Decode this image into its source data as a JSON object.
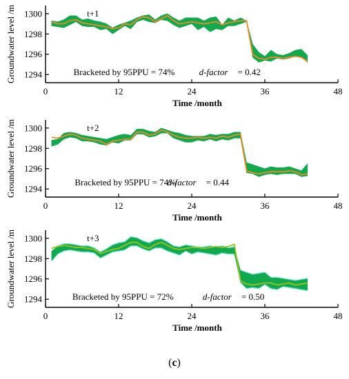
{
  "caption": {
    "open": "(",
    "letter": "c",
    "close": ")"
  },
  "colors": {
    "band": "#12a84e",
    "band_light": "#3fe0d0",
    "observed": "#f08a24",
    "observed_alt": "#9bc31e",
    "axis": "#000000"
  },
  "chart_data": [
    {
      "type": "area",
      "panel_label": "t+1",
      "xlabel": "Time /month",
      "ylabel": "Groundwater level /m",
      "xlim": [
        0,
        48
      ],
      "ylim": [
        1293.2,
        1300.8
      ],
      "xticks": [
        0,
        12,
        24,
        36,
        48
      ],
      "yticks": [
        1294,
        1296,
        1298,
        1300
      ],
      "grid": false,
      "annotation_text": "Bracketed by 95PPU = 74%",
      "dfactor_label": "d-factor",
      "dfactor_value": "= 0.42",
      "series": [
        {
          "role": "band",
          "x": [
            1,
            2,
            3,
            4,
            5,
            6,
            7,
            8,
            9,
            10,
            11,
            12,
            13,
            14,
            15,
            16,
            17,
            18,
            19,
            20,
            21,
            22,
            23,
            24,
            25,
            26,
            27,
            28,
            29,
            30,
            31,
            32,
            33,
            34,
            35,
            36,
            37,
            38,
            39,
            40,
            41,
            42,
            43
          ],
          "lower": [
            1298.8,
            1298.7,
            1298.6,
            1298.9,
            1299.2,
            1298.8,
            1298.7,
            1298.7,
            1298.4,
            1298.5,
            1298.0,
            1298.4,
            1298.8,
            1298.5,
            1299.2,
            1299.4,
            1299.2,
            1299.1,
            1299.4,
            1299.3,
            1298.9,
            1298.6,
            1298.8,
            1299.0,
            1298.4,
            1298.7,
            1298.2,
            1298.5,
            1298.4,
            1298.8,
            1298.8,
            1299.0,
            1299.2,
            1295.7,
            1295.2,
            1295.4,
            1295.3,
            1295.6,
            1295.5,
            1295.6,
            1295.8,
            1295.7,
            1295.2
          ],
          "upper": [
            1299.3,
            1299.2,
            1299.4,
            1299.8,
            1299.8,
            1299.4,
            1299.5,
            1299.3,
            1299.2,
            1299.0,
            1298.6,
            1298.9,
            1299.1,
            1299.3,
            1299.6,
            1299.8,
            1299.9,
            1299.4,
            1299.8,
            1300.0,
            1299.6,
            1299.3,
            1299.6,
            1299.6,
            1299.6,
            1299.3,
            1299.6,
            1299.7,
            1298.9,
            1299.6,
            1299.3,
            1299.6,
            1299.3,
            1297.0,
            1296.2,
            1295.8,
            1296.4,
            1296.0,
            1295.9,
            1296.1,
            1296.4,
            1296.5,
            1295.9
          ]
        },
        {
          "role": "observed",
          "x": [
            1,
            2,
            3,
            4,
            5,
            6,
            7,
            8,
            9,
            10,
            11,
            12,
            13,
            14,
            15,
            16,
            17,
            18,
            19,
            20,
            21,
            22,
            23,
            24,
            25,
            26,
            27,
            28,
            29,
            30,
            31,
            32,
            33,
            34,
            35,
            36,
            37,
            38,
            39,
            40,
            41,
            42,
            43
          ],
          "values": [
            1299.2,
            1299.0,
            1299.0,
            1299.3,
            1299.4,
            1299.1,
            1299.0,
            1298.9,
            1298.8,
            1298.7,
            1298.5,
            1298.6,
            1299.0,
            1298.9,
            1299.4,
            1299.7,
            1299.6,
            1299.2,
            1299.5,
            1299.8,
            1299.3,
            1299.0,
            1299.1,
            1299.2,
            1299.1,
            1299.0,
            1299.1,
            1299.2,
            1298.9,
            1299.1,
            1299.2,
            1299.3,
            1299.3,
            1296.0,
            1295.6,
            1295.5,
            1295.7,
            1295.7,
            1295.6,
            1295.7,
            1295.8,
            1295.7,
            1295.3
          ]
        }
      ]
    },
    {
      "type": "area",
      "panel_label": "t+2",
      "xlabel": "Time /month",
      "ylabel": "Groundwater level /m",
      "xlim": [
        0,
        48
      ],
      "ylim": [
        1293.2,
        1300.8
      ],
      "xticks": [
        0,
        12,
        24,
        36,
        48
      ],
      "yticks": [
        1294,
        1296,
        1298,
        1300
      ],
      "grid": false,
      "annotation_text": "Bracketed by 95PPU = 74%",
      "dfactor_label": "d-factor",
      "dfactor_value": "= 0.44",
      "series": [
        {
          "role": "band",
          "x": [
            1,
            2,
            3,
            4,
            5,
            6,
            7,
            8,
            9,
            10,
            11,
            12,
            13,
            14,
            15,
            16,
            17,
            18,
            19,
            20,
            21,
            22,
            23,
            24,
            25,
            26,
            27,
            28,
            29,
            30,
            31,
            32,
            33,
            34,
            35,
            36,
            37,
            38,
            39,
            40,
            41,
            42,
            43
          ],
          "lower": [
            1298.2,
            1298.4,
            1298.9,
            1299.1,
            1299.0,
            1298.7,
            1298.7,
            1298.6,
            1298.4,
            1298.3,
            1298.6,
            1298.5,
            1298.8,
            1298.8,
            1299.4,
            1299.4,
            1299.1,
            1299.2,
            1299.5,
            1299.5,
            1299.0,
            1298.8,
            1298.6,
            1298.6,
            1298.8,
            1298.7,
            1298.9,
            1298.7,
            1298.9,
            1298.8,
            1299.0,
            1299.0,
            1295.6,
            1295.5,
            1295.2,
            1295.4,
            1295.5,
            1295.4,
            1295.5,
            1295.5,
            1295.5,
            1295.2,
            1295.3
          ],
          "upper": [
            1298.8,
            1298.9,
            1299.5,
            1299.6,
            1299.5,
            1299.3,
            1299.2,
            1299.1,
            1299.0,
            1298.9,
            1299.1,
            1299.3,
            1299.4,
            1299.3,
            1299.9,
            1299.9,
            1299.7,
            1299.6,
            1300.0,
            1299.8,
            1299.6,
            1299.5,
            1299.3,
            1299.2,
            1299.2,
            1299.2,
            1299.4,
            1299.3,
            1299.4,
            1299.4,
            1299.6,
            1299.6,
            1296.6,
            1296.4,
            1296.2,
            1296.0,
            1296.2,
            1296.1,
            1296.1,
            1296.2,
            1296.0,
            1295.8,
            1296.5
          ]
        },
        {
          "role": "observed",
          "x": [
            1,
            2,
            3,
            4,
            5,
            6,
            7,
            8,
            9,
            10,
            11,
            12,
            13,
            14,
            15,
            16,
            17,
            18,
            19,
            20,
            21,
            22,
            23,
            24,
            25,
            26,
            27,
            28,
            29,
            30,
            31,
            32,
            33,
            34,
            35,
            36,
            37,
            38,
            39,
            40,
            41,
            42,
            43
          ],
          "values": [
            1299.1,
            1299.0,
            1299.2,
            1299.4,
            1299.3,
            1299.0,
            1298.9,
            1298.8,
            1298.7,
            1298.4,
            1298.7,
            1298.8,
            1298.9,
            1298.9,
            1299.6,
            1299.6,
            1299.3,
            1299.4,
            1299.8,
            1299.6,
            1299.3,
            1299.1,
            1299.0,
            1299.0,
            1299.1,
            1299.0,
            1299.1,
            1299.0,
            1299.2,
            1299.1,
            1299.3,
            1299.4,
            1295.8,
            1295.6,
            1295.5,
            1295.6,
            1295.7,
            1295.7,
            1295.7,
            1295.8,
            1295.7,
            1295.4,
            1295.5
          ]
        }
      ]
    },
    {
      "type": "area",
      "panel_label": "t+3",
      "xlabel": "Time /month",
      "ylabel": "Groundwater level /m",
      "xlim": [
        0,
        48
      ],
      "ylim": [
        1293.2,
        1300.8
      ],
      "xticks": [
        0,
        12,
        24,
        36,
        48
      ],
      "yticks": [
        1294,
        1296,
        1298,
        1300
      ],
      "grid": false,
      "annotation_text": "Bracketed by 95PPU = 72%",
      "dfactor_label": "d-factor",
      "dfactor_value": "= 0.50",
      "series": [
        {
          "role": "band",
          "x": [
            1,
            2,
            3,
            4,
            5,
            6,
            7,
            8,
            9,
            10,
            11,
            12,
            13,
            14,
            15,
            16,
            17,
            18,
            19,
            20,
            21,
            22,
            23,
            24,
            25,
            26,
            27,
            28,
            29,
            30,
            31,
            32,
            33,
            34,
            35,
            36,
            37,
            38,
            39,
            40,
            41,
            42,
            43
          ],
          "lower": [
            1297.8,
            1298.5,
            1298.8,
            1298.9,
            1298.8,
            1298.7,
            1298.7,
            1298.6,
            1298.1,
            1298.4,
            1298.7,
            1298.8,
            1298.9,
            1299.3,
            1299.3,
            1299.0,
            1298.8,
            1299.1,
            1299.1,
            1298.8,
            1298.6,
            1298.4,
            1298.8,
            1298.5,
            1298.7,
            1298.6,
            1298.5,
            1298.4,
            1298.6,
            1298.5,
            1298.5,
            1295.7,
            1295.1,
            1295.2,
            1295.1,
            1295.5,
            1295.1,
            1295.0,
            1295.3,
            1295.2,
            1295.1,
            1295.0,
            1294.9
          ],
          "upper": [
            1298.7,
            1299.2,
            1299.4,
            1299.4,
            1299.3,
            1299.2,
            1299.2,
            1299.0,
            1298.6,
            1298.9,
            1299.3,
            1299.5,
            1299.6,
            1300.1,
            1300.0,
            1299.7,
            1299.5,
            1299.8,
            1299.9,
            1299.6,
            1299.2,
            1299.1,
            1299.3,
            1299.2,
            1299.1,
            1299.1,
            1299.2,
            1299.1,
            1299.2,
            1299.0,
            1299.1,
            1296.8,
            1296.6,
            1296.4,
            1296.5,
            1296.6,
            1296.1,
            1296.1,
            1296.0,
            1295.9,
            1295.8,
            1295.9,
            1296.0
          ]
        },
        {
          "role": "observed",
          "x": [
            1,
            2,
            3,
            4,
            5,
            6,
            7,
            8,
            9,
            10,
            11,
            12,
            13,
            14,
            15,
            16,
            17,
            18,
            19,
            20,
            21,
            22,
            23,
            24,
            25,
            26,
            27,
            28,
            29,
            30,
            31,
            32,
            33,
            34,
            35,
            36,
            37,
            38,
            39,
            40,
            41,
            42,
            43
          ],
          "values": [
            1299.0,
            1299.2,
            1299.3,
            1299.2,
            1299.1,
            1299.1,
            1299.0,
            1298.9,
            1298.5,
            1298.7,
            1298.9,
            1299.0,
            1299.3,
            1299.6,
            1299.6,
            1299.2,
            1299.0,
            1299.4,
            1299.6,
            1299.3,
            1299.0,
            1298.9,
            1299.0,
            1299.1,
            1299.1,
            1299.0,
            1299.1,
            1299.2,
            1299.1,
            1299.2,
            1299.4,
            1295.8,
            1295.5,
            1295.4,
            1295.5,
            1295.6,
            1295.6,
            1295.4,
            1295.5,
            1295.6,
            1295.4,
            1295.5,
            1295.6
          ]
        }
      ]
    }
  ]
}
